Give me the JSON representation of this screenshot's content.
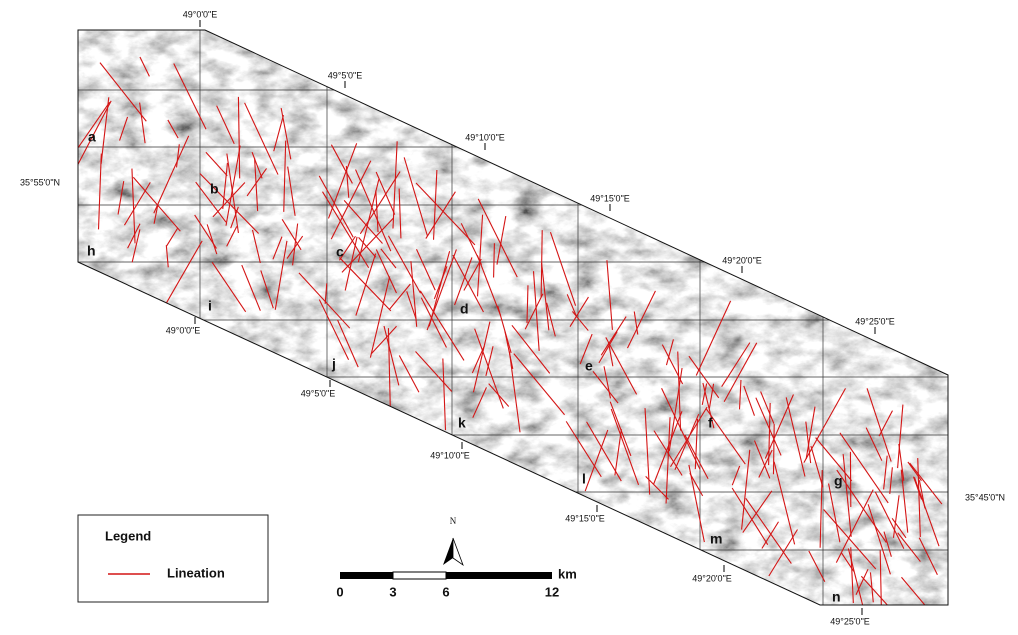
{
  "map": {
    "top_longitudes": [
      "49°0'0\"E",
      "49°5'0\"E",
      "49°10'0\"E",
      "49°15'0\"E",
      "49°20'0\"E",
      "49°25'0\"E"
    ],
    "bottom_longitudes": [
      "49°0'0\"E",
      "49°5'0\"E",
      "49°10'0\"E",
      "49°15'0\"E",
      "49°20'0\"E",
      "49°25'0\"E"
    ],
    "latitudes": [
      "35°55'0\"N",
      "35°45'0\"N"
    ],
    "cells": [
      "a",
      "b",
      "c",
      "d",
      "e",
      "f",
      "g",
      "h",
      "i",
      "j",
      "k",
      "l",
      "m",
      "n"
    ],
    "legend": {
      "title": "Legend",
      "items": [
        "Lineation"
      ]
    },
    "scale_bar": {
      "labels": [
        "0",
        "3",
        "6",
        "12"
      ],
      "unit": "km"
    },
    "north": "N"
  }
}
